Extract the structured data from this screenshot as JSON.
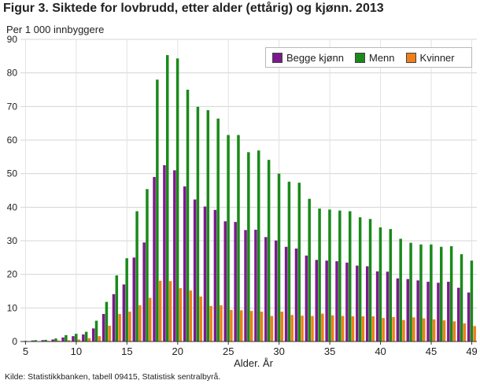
{
  "chart_data": {
    "type": "bar",
    "title": "Figur 3. Siktede for lovbrudd, etter alder (ettårig) og kjønn. 2013",
    "ylabel": "Per 1 000 innbyggere",
    "xlabel": "Alder. År",
    "source": "Kilde: Statistikkbanken, tabell 09415, Statistisk sentralbyrå.",
    "ylim": [
      0,
      90
    ],
    "yticks": [
      0,
      10,
      20,
      30,
      40,
      50,
      60,
      70,
      80,
      90
    ],
    "xticks": [
      5,
      10,
      15,
      20,
      25,
      30,
      35,
      40,
      45,
      49
    ],
    "grid": true,
    "legend_position": "top-right",
    "categories": [
      5,
      6,
      7,
      8,
      9,
      10,
      11,
      12,
      13,
      14,
      15,
      16,
      17,
      18,
      19,
      20,
      21,
      22,
      23,
      24,
      25,
      26,
      27,
      28,
      29,
      30,
      31,
      32,
      33,
      34,
      35,
      36,
      37,
      38,
      39,
      40,
      41,
      42,
      43,
      44,
      45,
      46,
      47,
      48,
      49
    ],
    "series": [
      {
        "name": "Begge kjønn",
        "color": "#7b1a8c",
        "values": [
          0.1,
          0.3,
          0.4,
          0.6,
          1.2,
          1.6,
          2.1,
          3.9,
          8.2,
          14.1,
          17.0,
          25.0,
          29.5,
          49.0,
          52.5,
          51.0,
          46.2,
          42.3,
          40.2,
          39.2,
          35.8,
          35.6,
          33.2,
          33.3,
          31.1,
          30.1,
          28.2,
          27.7,
          25.6,
          24.3,
          24.1,
          23.9,
          23.5,
          22.6,
          22.4,
          20.9,
          20.8,
          18.8,
          18.6,
          18.2,
          17.8,
          17.5,
          17.8,
          16.0,
          14.6
        ]
      },
      {
        "name": "Menn",
        "color": "#1a8a1a",
        "values": [
          0.2,
          0.4,
          0.5,
          0.9,
          1.9,
          2.3,
          2.9,
          6.2,
          11.8,
          19.7,
          24.8,
          38.8,
          45.4,
          78.0,
          85.3,
          84.3,
          75.0,
          69.9,
          68.9,
          66.4,
          61.5,
          61.5,
          56.4,
          56.9,
          54.1,
          50.0,
          47.6,
          47.3,
          42.5,
          39.6,
          39.3,
          39.0,
          38.8,
          37.0,
          36.5,
          34.0,
          33.5,
          30.6,
          29.4,
          28.9,
          28.9,
          28.2,
          28.4,
          26.0,
          24.1
        ]
      },
      {
        "name": "Kvinner",
        "color": "#ef7f1a",
        "values": [
          0.05,
          0.1,
          0.2,
          0.3,
          0.4,
          0.6,
          1.0,
          1.6,
          4.7,
          8.2,
          8.9,
          10.8,
          13.0,
          18.1,
          18.0,
          15.9,
          15.2,
          13.4,
          10.6,
          10.8,
          9.4,
          9.3,
          9.1,
          8.9,
          7.6,
          8.9,
          7.9,
          7.7,
          7.6,
          8.3,
          7.8,
          7.6,
          7.5,
          7.5,
          7.5,
          7.0,
          7.3,
          6.4,
          7.2,
          6.9,
          6.6,
          6.3,
          6.0,
          5.4,
          4.6
        ]
      }
    ]
  }
}
